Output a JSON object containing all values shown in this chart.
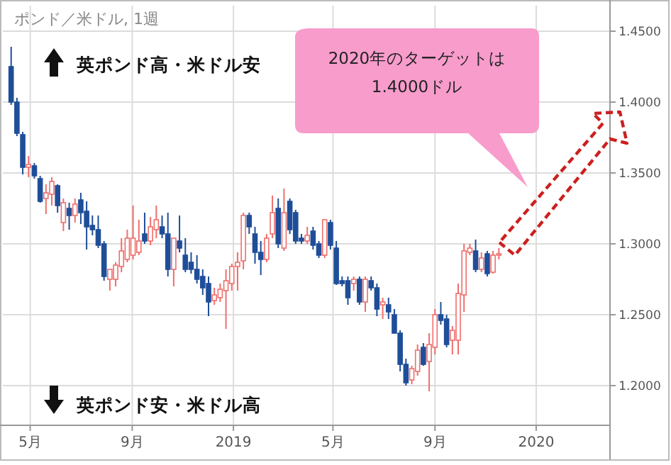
{
  "chart_data": {
    "type": "candlestick",
    "title": "ポンド／米ドル, 1週",
    "x": [
      "2018-04-08",
      "2018-04-15",
      "2018-04-22",
      "2018-04-29",
      "2018-05-06",
      "2018-05-13",
      "2018-05-20",
      "2018-05-27",
      "2018-06-03",
      "2018-06-10",
      "2018-06-17",
      "2018-06-24",
      "2018-07-01",
      "2018-07-08",
      "2018-07-15",
      "2018-07-22",
      "2018-07-29",
      "2018-08-05",
      "2018-08-12",
      "2018-08-19",
      "2018-08-26",
      "2018-09-02",
      "2018-09-09",
      "2018-09-16",
      "2018-09-23",
      "2018-09-30",
      "2018-10-07",
      "2018-10-14",
      "2018-10-21",
      "2018-10-28",
      "2018-11-04",
      "2018-11-11",
      "2018-11-18",
      "2018-11-25",
      "2018-12-02",
      "2018-12-09",
      "2018-12-16",
      "2018-12-23",
      "2018-12-30",
      "2019-01-06",
      "2019-01-13",
      "2019-01-20",
      "2019-01-27",
      "2019-02-03",
      "2019-02-10",
      "2019-02-17",
      "2019-02-24",
      "2019-03-03",
      "2019-03-10",
      "2019-03-17",
      "2019-03-24",
      "2019-03-31",
      "2019-04-07",
      "2019-04-14",
      "2019-04-21",
      "2019-04-28",
      "2019-05-05",
      "2019-05-12",
      "2019-05-19",
      "2019-05-26",
      "2019-06-02",
      "2019-06-09",
      "2019-06-16",
      "2019-06-23",
      "2019-06-30",
      "2019-07-07",
      "2019-07-14",
      "2019-07-21",
      "2019-07-28",
      "2019-08-04",
      "2019-08-11",
      "2019-08-18",
      "2019-08-25",
      "2019-09-01",
      "2019-09-08",
      "2019-09-15",
      "2019-09-22",
      "2019-09-29",
      "2019-10-06",
      "2019-10-13",
      "2019-10-20",
      "2019-10-27",
      "2019-11-03",
      "2019-11-10",
      "2019-11-17"
    ],
    "ohlc": [
      [
        1.425,
        1.439,
        1.398,
        1.4
      ],
      [
        1.4,
        1.403,
        1.376,
        1.378
      ],
      [
        1.377,
        1.379,
        1.349,
        1.354
      ],
      [
        1.354,
        1.362,
        1.347,
        1.356
      ],
      [
        1.355,
        1.357,
        1.346,
        1.348
      ],
      [
        1.346,
        1.348,
        1.329,
        1.33
      ],
      [
        1.332,
        1.342,
        1.321,
        1.336
      ],
      [
        1.335,
        1.347,
        1.327,
        1.344
      ],
      [
        1.341,
        1.342,
        1.322,
        1.327
      ],
      [
        1.315,
        1.332,
        1.309,
        1.329
      ],
      [
        1.325,
        1.329,
        1.31,
        1.32
      ],
      [
        1.32,
        1.332,
        1.315,
        1.328
      ],
      [
        1.331,
        1.336,
        1.314,
        1.322
      ],
      [
        1.323,
        1.33,
        1.296,
        1.312
      ],
      [
        1.313,
        1.32,
        1.306,
        1.31
      ],
      [
        1.31,
        1.32,
        1.297,
        1.299
      ],
      [
        1.3,
        1.302,
        1.274,
        1.277
      ],
      [
        1.275,
        1.282,
        1.267,
        1.282
      ],
      [
        1.275,
        1.287,
        1.27,
        1.285
      ],
      [
        1.284,
        1.304,
        1.28,
        1.295
      ],
      [
        1.289,
        1.31,
        1.287,
        1.304
      ],
      [
        1.292,
        1.327,
        1.289,
        1.304
      ],
      [
        1.294,
        1.317,
        1.292,
        1.302
      ],
      [
        1.307,
        1.322,
        1.3,
        1.302
      ],
      [
        1.302,
        1.319,
        1.299,
        1.312
      ],
      [
        1.31,
        1.327,
        1.304,
        1.317
      ],
      [
        1.312,
        1.32,
        1.304,
        1.307
      ],
      [
        1.307,
        1.322,
        1.277,
        1.282
      ],
      [
        1.282,
        1.304,
        1.27,
        1.304
      ],
      [
        1.302,
        1.32,
        1.294,
        1.297
      ],
      [
        1.292,
        1.304,
        1.28,
        1.282
      ],
      [
        1.287,
        1.294,
        1.279,
        1.282
      ],
      [
        1.282,
        1.292,
        1.272,
        1.275
      ],
      [
        1.277,
        1.282,
        1.264,
        1.269
      ],
      [
        1.272,
        1.277,
        1.249,
        1.259
      ],
      [
        1.26,
        1.269,
        1.257,
        1.264
      ],
      [
        1.262,
        1.272,
        1.259,
        1.268
      ],
      [
        1.267,
        1.282,
        1.24,
        1.274
      ],
      [
        1.272,
        1.286,
        1.267,
        1.284
      ],
      [
        1.284,
        1.294,
        1.267,
        1.287
      ],
      [
        1.288,
        1.322,
        1.282,
        1.32
      ],
      [
        1.32,
        1.322,
        1.307,
        1.312
      ],
      [
        1.307,
        1.312,
        1.286,
        1.294
      ],
      [
        1.294,
        1.302,
        1.278,
        1.289
      ],
      [
        1.289,
        1.307,
        1.287,
        1.304
      ],
      [
        1.307,
        1.334,
        1.304,
        1.322
      ],
      [
        1.325,
        1.332,
        1.297,
        1.3
      ],
      [
        1.297,
        1.339,
        1.295,
        1.322
      ],
      [
        1.33,
        1.332,
        1.307,
        1.31
      ],
      [
        1.322,
        1.324,
        1.3,
        1.302
      ],
      [
        1.304,
        1.307,
        1.3,
        1.302
      ],
      [
        1.302,
        1.312,
        1.3,
        1.306
      ],
      [
        1.309,
        1.312,
        1.296,
        1.299
      ],
      [
        1.3,
        1.302,
        1.29,
        1.292
      ],
      [
        1.292,
        1.317,
        1.29,
        1.317
      ],
      [
        1.315,
        1.317,
        1.296,
        1.299
      ],
      [
        1.297,
        1.302,
        1.271,
        1.272
      ],
      [
        1.274,
        1.277,
        1.27,
        1.272
      ],
      [
        1.274,
        1.277,
        1.257,
        1.262
      ],
      [
        1.272,
        1.277,
        1.267,
        1.275
      ],
      [
        1.275,
        1.277,
        1.257,
        1.259
      ],
      [
        1.259,
        1.277,
        1.252,
        1.275
      ],
      [
        1.274,
        1.277,
        1.267,
        1.269
      ],
      [
        1.269,
        1.272,
        1.249,
        1.254
      ],
      [
        1.257,
        1.262,
        1.247,
        1.259
      ],
      [
        1.257,
        1.262,
        1.247,
        1.252
      ],
      [
        1.25,
        1.254,
        1.237,
        1.237
      ],
      [
        1.237,
        1.239,
        1.21,
        1.215
      ],
      [
        1.215,
        1.219,
        1.2,
        1.202
      ],
      [
        1.204,
        1.214,
        1.201,
        1.212
      ],
      [
        1.21,
        1.229,
        1.207,
        1.225
      ],
      [
        1.227,
        1.23,
        1.214,
        1.215
      ],
      [
        1.217,
        1.237,
        1.196,
        1.229
      ],
      [
        1.227,
        1.254,
        1.222,
        1.25
      ],
      [
        1.25,
        1.259,
        1.243,
        1.246
      ],
      [
        1.247,
        1.25,
        1.227,
        1.229
      ],
      [
        1.232,
        1.242,
        1.222,
        1.239
      ],
      [
        1.232,
        1.272,
        1.222,
        1.265
      ],
      [
        1.264,
        1.3,
        1.252,
        1.295
      ],
      [
        1.294,
        1.3,
        1.292,
        1.297
      ],
      [
        1.295,
        1.303,
        1.28,
        1.282
      ],
      [
        1.282,
        1.294,
        1.28,
        1.29
      ],
      [
        1.293,
        1.295,
        1.277,
        1.279
      ],
      [
        1.28,
        1.295,
        1.279,
        1.292
      ],
      [
        1.292,
        1.297,
        1.289,
        1.293
      ]
    ],
    "colors": [
      "#1f4e99",
      "#1f4e99",
      "#1f4e99",
      "#ef6f6c",
      "#1f4e99",
      "#1f4e99",
      "#ef6f6c",
      "#ef6f6c",
      "#1f4e99",
      "#ef6f6c",
      "#1f4e99",
      "#ef6f6c",
      "#1f4e99",
      "#1f4e99",
      "#1f4e99",
      "#1f4e99",
      "#1f4e99",
      "#ef6f6c",
      "#ef6f6c",
      "#ef6f6c",
      "#ef6f6c",
      "#ef6f6c",
      "#ef6f6c",
      "#1f4e99",
      "#ef6f6c",
      "#ef6f6c",
      "#1f4e99",
      "#1f4e99",
      "#ef6f6c",
      "#1f4e99",
      "#1f4e99",
      "#1f4e99",
      "#1f4e99",
      "#1f4e99",
      "#1f4e99",
      "#ef6f6c",
      "#ef6f6c",
      "#ef6f6c",
      "#ef6f6c",
      "#ef6f6c",
      "#ef6f6c",
      "#1f4e99",
      "#1f4e99",
      "#1f4e99",
      "#ef6f6c",
      "#ef6f6c",
      "#1f4e99",
      "#ef6f6c",
      "#1f4e99",
      "#1f4e99",
      "#1f4e99",
      "#ef6f6c",
      "#1f4e99",
      "#1f4e99",
      "#ef6f6c",
      "#1f4e99",
      "#1f4e99",
      "#1f4e99",
      "#1f4e99",
      "#ef6f6c",
      "#1f4e99",
      "#ef6f6c",
      "#1f4e99",
      "#1f4e99",
      "#ef6f6c",
      "#1f4e99",
      "#1f4e99",
      "#1f4e99",
      "#1f4e99",
      "#ef6f6c",
      "#ef6f6c",
      "#1f4e99",
      "#ef6f6c",
      "#ef6f6c",
      "#1f4e99",
      "#1f4e99",
      "#ef6f6c",
      "#ef6f6c",
      "#ef6f6c",
      "#ef6f6c",
      "#1f4e99",
      "#ef6f6c",
      "#1f4e99",
      "#ef6f6c",
      "#ef6f6c"
    ],
    "xlim": [
      "2018-03-29",
      "2020-03-30"
    ],
    "xticks": [
      {
        "value": "2018-05-01",
        "label": "5月"
      },
      {
        "value": "2018-09-01",
        "label": "9月"
      },
      {
        "value": "2019-01-01",
        "label": "2019"
      },
      {
        "value": "2019-05-01",
        "label": "5月"
      },
      {
        "value": "2019-09-01",
        "label": "9月"
      },
      {
        "value": "2020-01-01",
        "label": "2020"
      }
    ],
    "ylim": [
      1.172,
      1.468
    ],
    "yticks": [
      {
        "value": 1.2,
        "label": "1.2000"
      },
      {
        "value": 1.25,
        "label": "1.2500"
      },
      {
        "value": 1.3,
        "label": "1.3000"
      },
      {
        "value": 1.35,
        "label": "1.3500"
      },
      {
        "value": 1.4,
        "label": "1.4000"
      },
      {
        "value": 1.45,
        "label": "1.4500"
      }
    ],
    "grid": true,
    "annotations": [
      "英ポンド高・米ドル安",
      "英ポンド安・米ドル高",
      "2020年のターゲットは\n1.4000ドル"
    ]
  }
}
